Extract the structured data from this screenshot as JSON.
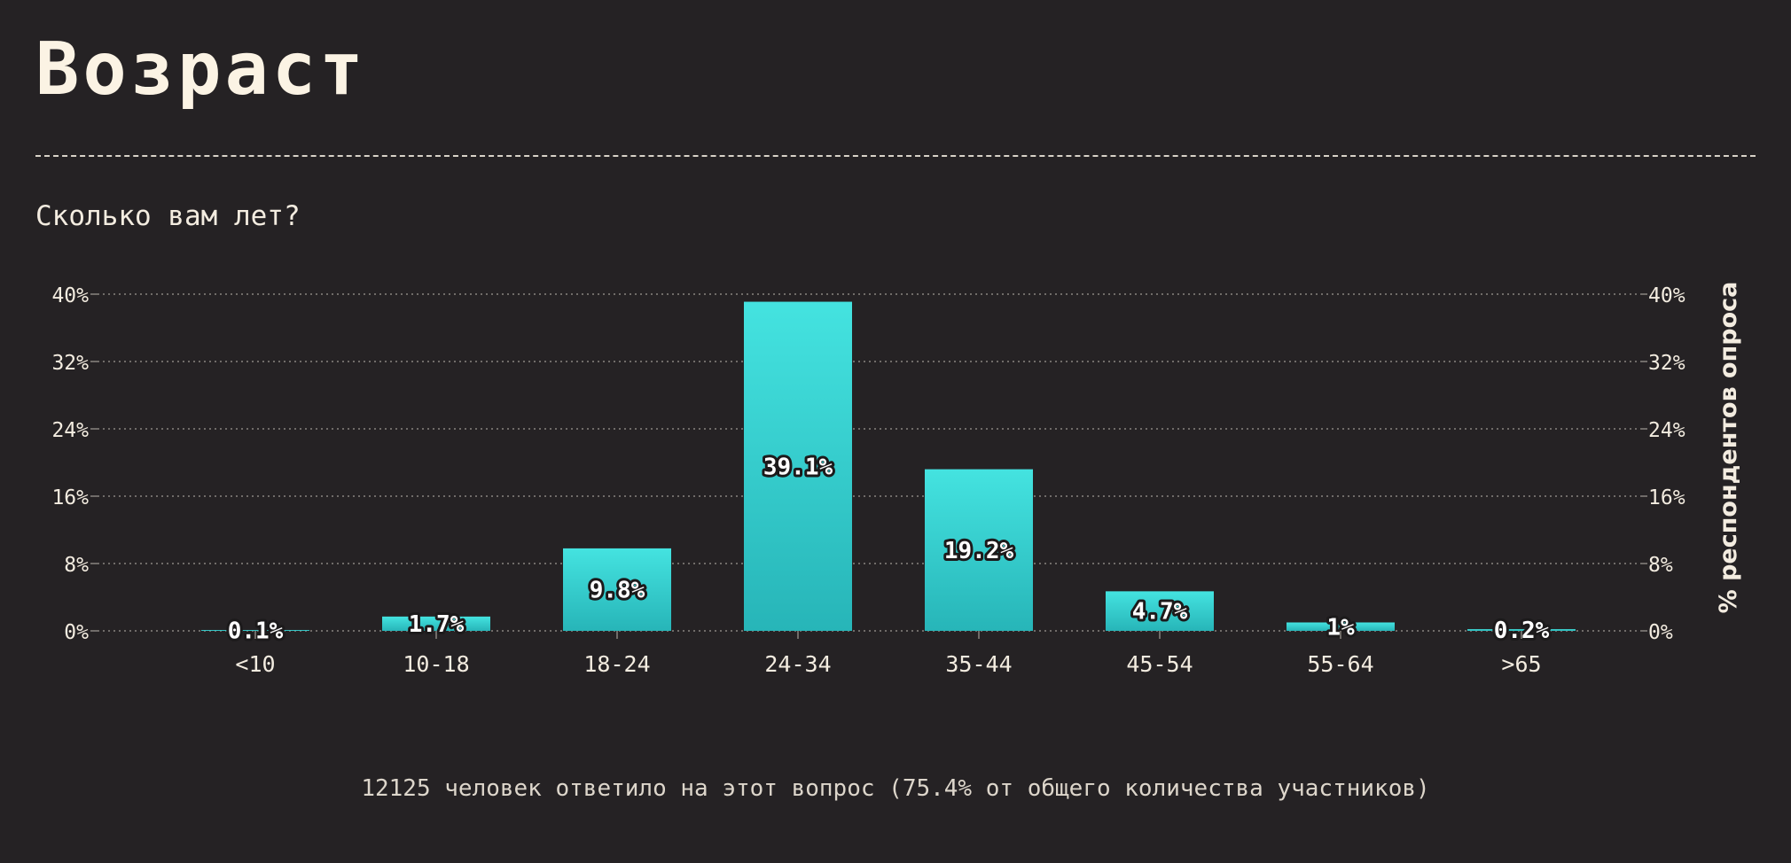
{
  "header": {
    "title": "Возраст",
    "question": "Сколько вам лет?"
  },
  "footnote": "12125 человек ответило на этот вопрос (75.4% от общего количества участников)",
  "colors": {
    "background": "#252224",
    "bar_top": "#44e3e0",
    "bar_bottom": "#27b5b8",
    "text": "#f3ece0",
    "grid": "#8a8580"
  },
  "chart_data": {
    "type": "bar",
    "categories": [
      "<10",
      "10-18",
      "18-24",
      "24-34",
      "35-44",
      "45-54",
      "55-64",
      ">65"
    ],
    "values": [
      0.1,
      1.7,
      9.8,
      39.1,
      19.2,
      4.7,
      1,
      0.2
    ],
    "value_labels": [
      "0.1%",
      "1.7%",
      "9.8%",
      "39.1%",
      "19.2%",
      "4.7%",
      "1%",
      "0.2%"
    ],
    "yticks": [
      0,
      8,
      16,
      24,
      32,
      40
    ],
    "ytick_labels": [
      "0%",
      "8%",
      "16%",
      "24%",
      "32%",
      "40%"
    ],
    "ylim": [
      0,
      40
    ],
    "ylabel": "% респондентов опроса",
    "xlabel": "",
    "grid": true,
    "legend": false
  }
}
